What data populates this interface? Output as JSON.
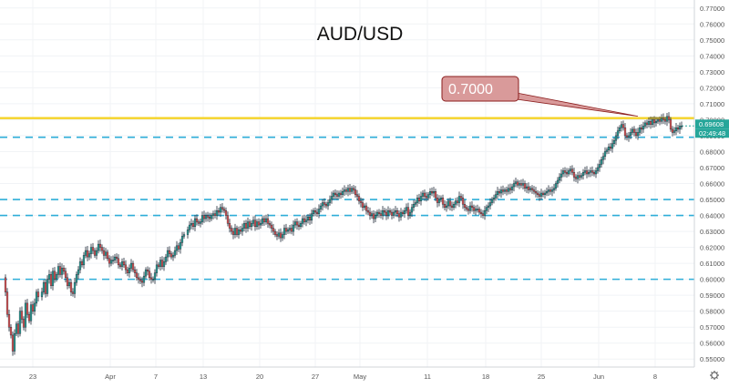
{
  "chart_data": {
    "type": "candlestick",
    "title": "AUD/USD",
    "ylim": [
      0.545,
      0.775
    ],
    "y_ticks": [
      "0.55000",
      "0.56000",
      "0.57000",
      "0.58000",
      "0.59000",
      "0.60000",
      "0.61000",
      "0.62000",
      "0.63000",
      "0.64000",
      "0.65000",
      "0.66000",
      "0.67000",
      "0.68000",
      "0.69000",
      "0.70000",
      "0.71000",
      "0.72000",
      "0.73000",
      "0.74000",
      "0.75000",
      "0.76000",
      "0.77000"
    ],
    "x_ticks": [
      "23",
      "Apr",
      "7",
      "13",
      "20",
      "27",
      "May",
      "11",
      "18",
      "25",
      "Jun",
      "8"
    ],
    "horizontal_levels": {
      "resistance": 0.701,
      "dashed": [
        0.689,
        0.65,
        0.64,
        0.6
      ]
    },
    "annotation": {
      "text": "0.7000",
      "value": 0.7
    },
    "price_label": "0.69608",
    "countdown_label": "02:49:48",
    "last_close": 0.6961,
    "path": [
      [
        0,
        0.601
      ],
      [
        4,
        0.592
      ],
      [
        6,
        0.578
      ],
      [
        8,
        0.57
      ],
      [
        10,
        0.565
      ],
      [
        12,
        0.555
      ],
      [
        14,
        0.566
      ],
      [
        16,
        0.572
      ],
      [
        18,
        0.566
      ],
      [
        20,
        0.58
      ],
      [
        22,
        0.575
      ],
      [
        24,
        0.57
      ],
      [
        26,
        0.585
      ],
      [
        28,
        0.578
      ],
      [
        30,
        0.574
      ],
      [
        32,
        0.584
      ],
      [
        34,
        0.58
      ],
      [
        36,
        0.585
      ],
      [
        38,
        0.592
      ],
      [
        40,
        0.589
      ],
      [
        44,
        0.592
      ],
      [
        46,
        0.598
      ],
      [
        48,
        0.591
      ],
      [
        50,
        0.6
      ],
      [
        52,
        0.603
      ],
      [
        54,
        0.596
      ],
      [
        56,
        0.605
      ],
      [
        58,
        0.6
      ],
      [
        60,
        0.603
      ],
      [
        62,
        0.608
      ],
      [
        64,
        0.603
      ],
      [
        66,
        0.607
      ],
      [
        68,
        0.605
      ],
      [
        70,
        0.601
      ],
      [
        72,
        0.596
      ],
      [
        74,
        0.598
      ],
      [
        76,
        0.592
      ],
      [
        78,
        0.591
      ],
      [
        80,
        0.598
      ],
      [
        82,
        0.603
      ],
      [
        84,
        0.606
      ],
      [
        86,
        0.611
      ],
      [
        88,
        0.609
      ],
      [
        90,
        0.615
      ],
      [
        92,
        0.618
      ],
      [
        94,
        0.614
      ],
      [
        96,
        0.616
      ],
      [
        98,
        0.62
      ],
      [
        100,
        0.618
      ],
      [
        102,
        0.615
      ],
      [
        104,
        0.618
      ],
      [
        106,
        0.622
      ],
      [
        108,
        0.62
      ],
      [
        110,
        0.618
      ],
      [
        112,
        0.615
      ],
      [
        114,
        0.617
      ],
      [
        116,
        0.613
      ],
      [
        118,
        0.61
      ],
      [
        120,
        0.612
      ],
      [
        122,
        0.612
      ],
      [
        124,
        0.614
      ],
      [
        126,
        0.613
      ],
      [
        128,
        0.609
      ],
      [
        130,
        0.608
      ],
      [
        132,
        0.611
      ],
      [
        134,
        0.609
      ],
      [
        136,
        0.606
      ],
      [
        138,
        0.604
      ],
      [
        140,
        0.607
      ],
      [
        142,
        0.61
      ],
      [
        144,
        0.606
      ],
      [
        146,
        0.604
      ],
      [
        148,
        0.601
      ],
      [
        150,
        0.6
      ],
      [
        152,
        0.599
      ],
      [
        154,
        0.598
      ],
      [
        156,
        0.602
      ],
      [
        158,
        0.606
      ],
      [
        160,
        0.605
      ],
      [
        162,
        0.601
      ],
      [
        164,
        0.6
      ],
      [
        166,
        0.6
      ],
      [
        168,
        0.604
      ],
      [
        170,
        0.609
      ],
      [
        172,
        0.608
      ],
      [
        174,
        0.612
      ],
      [
        176,
        0.608
      ],
      [
        178,
        0.611
      ],
      [
        180,
        0.614
      ],
      [
        182,
        0.618
      ],
      [
        184,
        0.616
      ],
      [
        186,
        0.614
      ],
      [
        188,
        0.615
      ],
      [
        190,
        0.618
      ],
      [
        192,
        0.621
      ],
      [
        194,
        0.619
      ],
      [
        196,
        0.623
      ],
      [
        198,
        0.627
      ],
      [
        200,
        0.628
      ],
      [
        204,
        0.631
      ],
      [
        206,
        0.634
      ],
      [
        208,
        0.635
      ],
      [
        210,
        0.633
      ],
      [
        212,
        0.638
      ],
      [
        214,
        0.636
      ],
      [
        216,
        0.635
      ],
      [
        218,
        0.636
      ],
      [
        220,
        0.64
      ],
      [
        222,
        0.638
      ],
      [
        224,
        0.64
      ],
      [
        226,
        0.639
      ],
      [
        228,
        0.638
      ],
      [
        230,
        0.64
      ],
      [
        232,
        0.641
      ],
      [
        234,
        0.64
      ],
      [
        236,
        0.643
      ],
      [
        238,
        0.642
      ],
      [
        240,
        0.645
      ],
      [
        242,
        0.644
      ],
      [
        244,
        0.643
      ],
      [
        246,
        0.64
      ],
      [
        248,
        0.635
      ],
      [
        250,
        0.632
      ],
      [
        252,
        0.63
      ],
      [
        254,
        0.628
      ],
      [
        256,
        0.632
      ],
      [
        258,
        0.628
      ],
      [
        260,
        0.631
      ],
      [
        262,
        0.63
      ],
      [
        264,
        0.632
      ],
      [
        266,
        0.635
      ],
      [
        268,
        0.632
      ],
      [
        270,
        0.636
      ],
      [
        272,
        0.633
      ],
      [
        274,
        0.635
      ],
      [
        276,
        0.637
      ],
      [
        278,
        0.633
      ],
      [
        280,
        0.636
      ],
      [
        282,
        0.634
      ],
      [
        284,
        0.635
      ],
      [
        286,
        0.638
      ],
      [
        288,
        0.636
      ],
      [
        290,
        0.638
      ],
      [
        292,
        0.635
      ],
      [
        294,
        0.634
      ],
      [
        296,
        0.632
      ],
      [
        298,
        0.63
      ],
      [
        300,
        0.628
      ],
      [
        302,
        0.627
      ],
      [
        304,
        0.629
      ],
      [
        306,
        0.626
      ],
      [
        308,
        0.628
      ],
      [
        310,
        0.632
      ],
      [
        312,
        0.63
      ],
      [
        314,
        0.631
      ],
      [
        316,
        0.632
      ],
      [
        318,
        0.63
      ],
      [
        320,
        0.634
      ],
      [
        322,
        0.636
      ],
      [
        324,
        0.634
      ],
      [
        326,
        0.633
      ],
      [
        328,
        0.635
      ],
      [
        330,
        0.638
      ],
      [
        332,
        0.636
      ],
      [
        334,
        0.637
      ],
      [
        336,
        0.639
      ],
      [
        338,
        0.637
      ],
      [
        340,
        0.641
      ],
      [
        342,
        0.643
      ],
      [
        344,
        0.642
      ],
      [
        346,
        0.641
      ],
      [
        348,
        0.644
      ],
      [
        350,
        0.646
      ],
      [
        352,
        0.648
      ],
      [
        354,
        0.647
      ],
      [
        356,
        0.646
      ],
      [
        358,
        0.648
      ],
      [
        360,
        0.65
      ],
      [
        362,
        0.652
      ],
      [
        364,
        0.654
      ],
      [
        366,
        0.653
      ],
      [
        368,
        0.652
      ],
      [
        370,
        0.654
      ],
      [
        372,
        0.653
      ],
      [
        374,
        0.655
      ],
      [
        376,
        0.656
      ],
      [
        378,
        0.655
      ],
      [
        380,
        0.657
      ],
      [
        382,
        0.655
      ],
      [
        384,
        0.657
      ],
      [
        386,
        0.656
      ],
      [
        388,
        0.653
      ],
      [
        390,
        0.652
      ],
      [
        392,
        0.649
      ],
      [
        394,
        0.648
      ],
      [
        396,
        0.645
      ],
      [
        398,
        0.646
      ],
      [
        400,
        0.643
      ],
      [
        402,
        0.642
      ],
      [
        404,
        0.64
      ],
      [
        406,
        0.641
      ],
      [
        408,
        0.638
      ],
      [
        410,
        0.64
      ],
      [
        412,
        0.642
      ],
      [
        414,
        0.641
      ],
      [
        416,
        0.64
      ],
      [
        418,
        0.643
      ],
      [
        420,
        0.642
      ],
      [
        422,
        0.64
      ],
      [
        424,
        0.643
      ],
      [
        426,
        0.642
      ],
      [
        428,
        0.64
      ],
      [
        430,
        0.642
      ],
      [
        432,
        0.643
      ],
      [
        434,
        0.641
      ],
      [
        436,
        0.639
      ],
      [
        438,
        0.642
      ],
      [
        440,
        0.641
      ],
      [
        442,
        0.643
      ],
      [
        444,
        0.645
      ],
      [
        446,
        0.64
      ],
      [
        448,
        0.642
      ],
      [
        450,
        0.645
      ],
      [
        452,
        0.647
      ],
      [
        454,
        0.648
      ],
      [
        456,
        0.651
      ],
      [
        458,
        0.649
      ],
      [
        460,
        0.652
      ],
      [
        462,
        0.654
      ],
      [
        464,
        0.652
      ],
      [
        466,
        0.651
      ],
      [
        468,
        0.653
      ],
      [
        470,
        0.655
      ],
      [
        472,
        0.654
      ],
      [
        474,
        0.655
      ],
      [
        476,
        0.651
      ],
      [
        478,
        0.648
      ],
      [
        480,
        0.65
      ],
      [
        482,
        0.651
      ],
      [
        484,
        0.647
      ],
      [
        486,
        0.645
      ],
      [
        488,
        0.646
      ],
      [
        490,
        0.649
      ],
      [
        492,
        0.646
      ],
      [
        494,
        0.645
      ],
      [
        496,
        0.647
      ],
      [
        498,
        0.649
      ],
      [
        500,
        0.648
      ],
      [
        502,
        0.652
      ],
      [
        504,
        0.651
      ],
      [
        506,
        0.647
      ],
      [
        508,
        0.645
      ],
      [
        510,
        0.644
      ],
      [
        512,
        0.643
      ],
      [
        514,
        0.646
      ],
      [
        516,
        0.645
      ],
      [
        518,
        0.643
      ],
      [
        520,
        0.644
      ],
      [
        522,
        0.644
      ],
      [
        524,
        0.642
      ],
      [
        526,
        0.641
      ],
      [
        528,
        0.64
      ],
      [
        530,
        0.643
      ],
      [
        532,
        0.645
      ],
      [
        534,
        0.646
      ],
      [
        536,
        0.648
      ],
      [
        538,
        0.65
      ],
      [
        540,
        0.651
      ],
      [
        542,
        0.653
      ],
      [
        544,
        0.655
      ],
      [
        546,
        0.654
      ],
      [
        548,
        0.656
      ],
      [
        550,
        0.655
      ],
      [
        552,
        0.656
      ],
      [
        554,
        0.655
      ],
      [
        556,
        0.657
      ],
      [
        558,
        0.656
      ],
      [
        560,
        0.658
      ],
      [
        562,
        0.66
      ],
      [
        564,
        0.661
      ],
      [
        566,
        0.659
      ],
      [
        568,
        0.66
      ],
      [
        570,
        0.659
      ],
      [
        572,
        0.66
      ],
      [
        574,
        0.657
      ],
      [
        576,
        0.658
      ],
      [
        578,
        0.656
      ],
      [
        580,
        0.657
      ],
      [
        582,
        0.656
      ],
      [
        584,
        0.655
      ],
      [
        586,
        0.654
      ],
      [
        588,
        0.653
      ],
      [
        590,
        0.652
      ],
      [
        592,
        0.654
      ],
      [
        594,
        0.653
      ],
      [
        596,
        0.654
      ],
      [
        598,
        0.655
      ],
      [
        600,
        0.656
      ],
      [
        602,
        0.655
      ],
      [
        604,
        0.656
      ],
      [
        606,
        0.657
      ],
      [
        608,
        0.66
      ],
      [
        610,
        0.662
      ],
      [
        612,
        0.664
      ],
      [
        614,
        0.666
      ],
      [
        616,
        0.668
      ],
      [
        618,
        0.667
      ],
      [
        620,
        0.666
      ],
      [
        622,
        0.668
      ],
      [
        624,
        0.669
      ],
      [
        626,
        0.667
      ],
      [
        628,
        0.664
      ],
      [
        630,
        0.663
      ],
      [
        632,
        0.665
      ],
      [
        634,
        0.664
      ],
      [
        636,
        0.665
      ],
      [
        638,
        0.667
      ],
      [
        640,
        0.668
      ],
      [
        642,
        0.666
      ],
      [
        644,
        0.667
      ],
      [
        646,
        0.668
      ],
      [
        648,
        0.667
      ],
      [
        650,
        0.666
      ],
      [
        652,
        0.668
      ],
      [
        654,
        0.67
      ],
      [
        656,
        0.672
      ],
      [
        658,
        0.675
      ],
      [
        660,
        0.677
      ],
      [
        662,
        0.68
      ],
      [
        664,
        0.681
      ],
      [
        666,
        0.683
      ],
      [
        668,
        0.682
      ],
      [
        670,
        0.685
      ],
      [
        672,
        0.687
      ],
      [
        674,
        0.69
      ],
      [
        676,
        0.693
      ],
      [
        678,
        0.695
      ],
      [
        680,
        0.697
      ],
      [
        682,
        0.695
      ],
      [
        684,
        0.69
      ],
      [
        686,
        0.689
      ],
      [
        688,
        0.69
      ],
      [
        690,
        0.692
      ],
      [
        692,
        0.694
      ],
      [
        694,
        0.692
      ],
      [
        696,
        0.69
      ],
      [
        698,
        0.692
      ],
      [
        700,
        0.695
      ],
      [
        702,
        0.694
      ],
      [
        704,
        0.696
      ],
      [
        706,
        0.698
      ],
      [
        708,
        0.697
      ],
      [
        710,
        0.699
      ],
      [
        712,
        0.697
      ],
      [
        714,
        0.7
      ],
      [
        716,
        0.698
      ],
      [
        718,
        0.699
      ],
      [
        720,
        0.7
      ],
      [
        722,
        0.699
      ],
      [
        724,
        0.701
      ],
      [
        726,
        0.7
      ],
      [
        728,
        0.699
      ],
      [
        730,
        0.702
      ],
      [
        732,
        0.7
      ],
      [
        734,
        0.694
      ],
      [
        736,
        0.692
      ],
      [
        738,
        0.693
      ],
      [
        740,
        0.695
      ],
      [
        742,
        0.694
      ],
      [
        744,
        0.696
      ],
      [
        746,
        0.6961
      ]
    ]
  }
}
